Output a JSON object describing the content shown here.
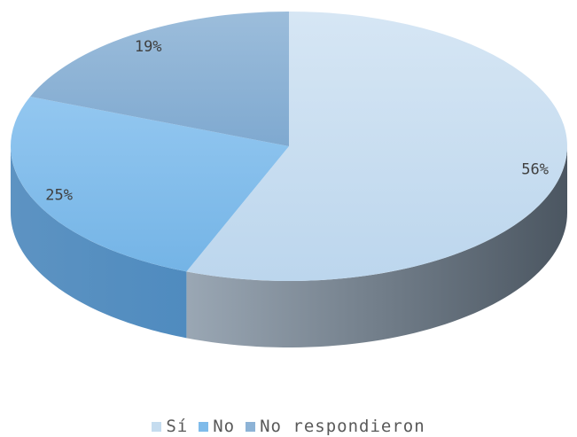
{
  "chart_data": {
    "type": "pie",
    "style": "3d-exploded-none",
    "categories": [
      "Sí",
      "No",
      "No respondieron"
    ],
    "values": [
      56,
      25,
      19
    ],
    "labels": [
      "56%",
      "25%",
      "19%"
    ],
    "colors": [
      "#c5dcef",
      "#7fbbea",
      "#8db3d6"
    ],
    "legend_position": "bottom",
    "title": ""
  }
}
